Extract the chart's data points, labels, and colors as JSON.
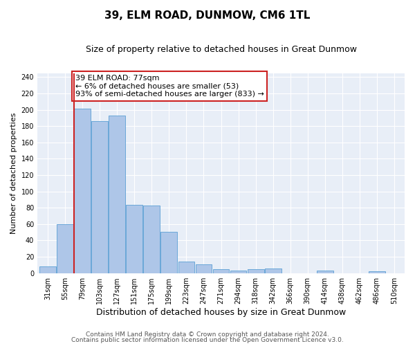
{
  "title": "39, ELM ROAD, DUNMOW, CM6 1TL",
  "subtitle": "Size of property relative to detached houses in Great Dunmow",
  "xlabel": "Distribution of detached houses by size in Great Dunmow",
  "ylabel": "Number of detached properties",
  "bar_labels": [
    "31sqm",
    "55sqm",
    "79sqm",
    "103sqm",
    "127sqm",
    "151sqm",
    "175sqm",
    "199sqm",
    "223sqm",
    "247sqm",
    "271sqm",
    "294sqm",
    "318sqm",
    "342sqm",
    "366sqm",
    "390sqm",
    "414sqm",
    "438sqm",
    "462sqm",
    "486sqm",
    "510sqm"
  ],
  "bar_values": [
    8,
    60,
    201,
    186,
    193,
    84,
    83,
    51,
    14,
    11,
    5,
    3,
    5,
    6,
    0,
    0,
    3,
    0,
    0,
    2,
    0
  ],
  "bar_color": "#aec6e8",
  "bar_edge_color": "#5a9fd4",
  "highlight_color": "#cc2222",
  "ylim": [
    0,
    245
  ],
  "annotation_text": "39 ELM ROAD: 77sqm\n← 6% of detached houses are smaller (53)\n93% of semi-detached houses are larger (833) →",
  "annotation_box_color": "white",
  "annotation_box_edge": "#cc2222",
  "footer1": "Contains HM Land Registry data © Crown copyright and database right 2024.",
  "footer2": "Contains public sector information licensed under the Open Government Licence v3.0.",
  "yticks": [
    0,
    20,
    40,
    60,
    80,
    100,
    120,
    140,
    160,
    180,
    200,
    220,
    240
  ],
  "title_fontsize": 11,
  "subtitle_fontsize": 9,
  "xlabel_fontsize": 9,
  "ylabel_fontsize": 8,
  "tick_fontsize": 7,
  "annotation_fontsize": 8,
  "footer_fontsize": 6.5
}
